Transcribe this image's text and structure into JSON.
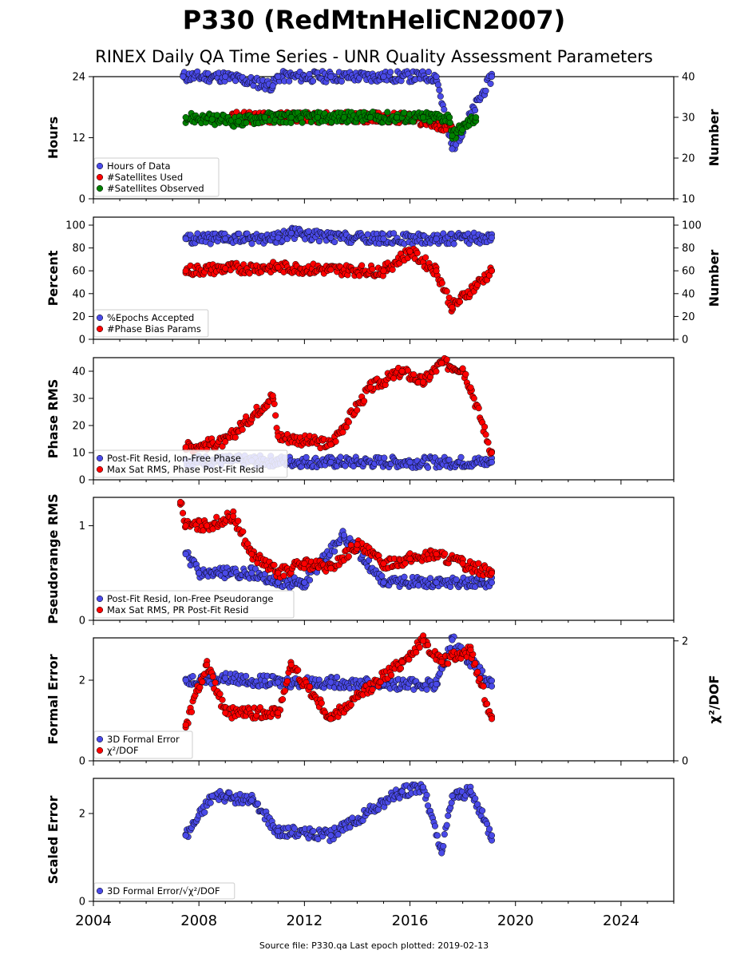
{
  "figure": {
    "title": "P330 (RedMtnHeliCN2007)",
    "subtitle": "RINEX Daily QA Time Series - UNR Quality Assessment Parameters",
    "footer": "Source file: P330.qa Last epoch plotted: 2019-02-13"
  },
  "colors": {
    "blue": "#4a4ae8",
    "red": "#ff0000",
    "green": "#008000",
    "outline": "#000000"
  },
  "chart_data": [
    {
      "type": "scatter",
      "ylabel": "Hours",
      "ylabel2": "Number",
      "xlim": [
        2004,
        2026
      ],
      "ylim": [
        0,
        24
      ],
      "yticks": [
        "0",
        "12",
        "24"
      ],
      "ylim2": [
        10,
        40
      ],
      "yticks2": [
        "10",
        "20",
        "30",
        "40"
      ],
      "legend_position": "lower-left",
      "series": [
        {
          "name": "Hours of Data",
          "color": "blue",
          "axis": "left",
          "values": [
            [
              2007.4,
              24
            ],
            [
              2009,
              24
            ],
            [
              2011,
              24
            ],
            [
              2013,
              24
            ],
            [
              2015,
              24
            ],
            [
              2017,
              24
            ],
            [
              2019.1,
              24
            ],
            [
              2010.8,
              22.2
            ],
            [
              2017.6,
              9.8
            ]
          ]
        },
        {
          "name": "#Satellites Used",
          "color": "red",
          "axis": "right",
          "values": [
            [
              2009.2,
              30
            ],
            [
              2017.6,
              27.5
            ],
            [
              2016,
              30
            ]
          ]
        },
        {
          "name": "#Satellites Observed",
          "color": "green",
          "axis": "right",
          "values": [
            [
              2007.5,
              30
            ],
            [
              2008.5,
              29.5
            ],
            [
              2009.5,
              29
            ],
            [
              2010.5,
              30
            ],
            [
              2011.5,
              30
            ],
            [
              2012.5,
              30
            ],
            [
              2013.5,
              30
            ],
            [
              2014.5,
              30
            ],
            [
              2015.5,
              30
            ],
            [
              2016.5,
              30
            ],
            [
              2017.5,
              30
            ],
            [
              2018.5,
              30
            ],
            [
              2017.6,
              25.5
            ]
          ]
        }
      ]
    },
    {
      "type": "scatter",
      "ylabel": "Percent",
      "ylabel2": "Number",
      "xlim": [
        2004,
        2026
      ],
      "ylim": [
        0,
        107
      ],
      "yticks": [
        "0",
        "20",
        "40",
        "60",
        "80",
        "100"
      ],
      "ylim2": [
        0,
        107
      ],
      "yticks2": [
        "0",
        "20",
        "40",
        "60",
        "80",
        "100"
      ],
      "legend_position": "lower-left",
      "series": [
        {
          "name": "%Epochs Accepted",
          "color": "blue",
          "axis": "left",
          "values": [
            [
              2007.5,
              88
            ],
            [
              2009,
              88
            ],
            [
              2011,
              89
            ],
            [
              2013,
              89
            ],
            [
              2015,
              88
            ],
            [
              2017,
              88
            ],
            [
              2019.1,
              89
            ],
            [
              2011.5,
              93
            ]
          ]
        },
        {
          "name": "#Phase Bias Params",
          "color": "red",
          "axis": "right",
          "values": [
            [
              2007.5,
              60
            ],
            [
              2009,
              62
            ],
            [
              2011,
              63
            ],
            [
              2013,
              61
            ],
            [
              2015,
              60
            ],
            [
              2017,
              60
            ],
            [
              2019.1,
              60
            ],
            [
              2017.6,
              28
            ],
            [
              2016,
              77
            ]
          ]
        }
      ]
    },
    {
      "type": "scatter",
      "ylabel": "Phase RMS",
      "xlim": [
        2004,
        2026
      ],
      "ylim": [
        0,
        45
      ],
      "yticks": [
        "0",
        "10",
        "20",
        "30",
        "40"
      ],
      "legend_position": "lower-left",
      "series": [
        {
          "name": "Post-Fit Resid, Ion-Free Phase",
          "color": "blue",
          "values": [
            [
              2007.5,
              7
            ],
            [
              2010,
              7
            ],
            [
              2013,
              6.5
            ],
            [
              2016,
              6.5
            ],
            [
              2019.1,
              6.5
            ]
          ]
        },
        {
          "name": "Max Sat RMS, Phase Post-Fit Resid",
          "color": "red",
          "values": [
            [
              2007.5,
              12
            ],
            [
              2009,
              14
            ],
            [
              2010.8,
              31
            ],
            [
              2011,
              16
            ],
            [
              2013,
              13
            ],
            [
              2014.5,
              34
            ],
            [
              2015.7,
              40
            ],
            [
              2016.5,
              36
            ],
            [
              2017.2,
              43
            ],
            [
              2018,
              41
            ],
            [
              2018.3,
              34
            ],
            [
              2019.1,
              10
            ]
          ]
        }
      ]
    },
    {
      "type": "scatter",
      "ylabel": "Pseudorange RMS",
      "xlim": [
        2004,
        2026
      ],
      "ylim": [
        0,
        1.3
      ],
      "yticks": [
        "0",
        "1"
      ],
      "legend_position": "lower-left",
      "series": [
        {
          "name": "Post-Fit Resid, Ion-Free Pseudorange",
          "color": "blue",
          "values": [
            [
              2007.5,
              0.7
            ],
            [
              2008,
              0.5
            ],
            [
              2009,
              0.5
            ],
            [
              2010,
              0.5
            ],
            [
              2011,
              0.4
            ],
            [
              2012,
              0.4
            ],
            [
              2013.5,
              0.9
            ],
            [
              2015,
              0.4
            ],
            [
              2017,
              0.4
            ],
            [
              2019.1,
              0.4
            ]
          ]
        },
        {
          "name": "Max Sat RMS, PR Post-Fit Resid",
          "color": "red",
          "values": [
            [
              2007.3,
              1.25
            ],
            [
              2007.5,
              1.0
            ],
            [
              2008.3,
              1.0
            ],
            [
              2009.3,
              1.1
            ],
            [
              2010,
              0.7
            ],
            [
              2011,
              0.5
            ],
            [
              2012,
              0.6
            ],
            [
              2013,
              0.55
            ],
            [
              2014,
              0.8
            ],
            [
              2015,
              0.6
            ],
            [
              2016,
              0.65
            ],
            [
              2017,
              0.7
            ],
            [
              2018,
              0.6
            ],
            [
              2019.1,
              0.5
            ]
          ]
        }
      ]
    },
    {
      "type": "scatter",
      "ylabel": "Formal Error",
      "ylabel2": "χ²/DOF",
      "xlim": [
        2004,
        2026
      ],
      "ylim": [
        0,
        3.05
      ],
      "yticks": [
        "0",
        "2"
      ],
      "ylim2": [
        0,
        2.05
      ],
      "yticks2": [
        "0",
        "2"
      ],
      "legend_position": "lower-left",
      "series": [
        {
          "name": "3D Formal Error",
          "color": "blue",
          "axis": "left",
          "values": [
            [
              2007.5,
              2.0
            ],
            [
              2009,
              2.05
            ],
            [
              2011,
              1.95
            ],
            [
              2013,
              1.95
            ],
            [
              2015,
              1.9
            ],
            [
              2017,
              1.9
            ],
            [
              2019.1,
              1.85
            ],
            [
              2017.6,
              3.0
            ]
          ]
        },
        {
          "name": "χ²/DOF",
          "color": "red",
          "axis": "right",
          "values": [
            [
              2007.5,
              0.6
            ],
            [
              2008.3,
              1.6
            ],
            [
              2009,
              0.8
            ],
            [
              2011,
              0.8
            ],
            [
              2011.5,
              1.6
            ],
            [
              2013,
              0.7
            ],
            [
              2015.7,
              1.65
            ],
            [
              2016.5,
              2.0
            ],
            [
              2017.2,
              1.65
            ],
            [
              2018.3,
              1.85
            ],
            [
              2019.1,
              0.7
            ]
          ]
        }
      ]
    },
    {
      "type": "scatter",
      "ylabel": "Scaled Error",
      "xlim": [
        2004,
        2026
      ],
      "ylim": [
        0,
        2.8
      ],
      "yticks": [
        "0",
        "2"
      ],
      "xticks": [
        "2004",
        "2008",
        "2012",
        "2016",
        "2020",
        "2024"
      ],
      "legend_position": "lower-left",
      "series": [
        {
          "name": "3D Formal Error/√χ²/DOF",
          "color": "blue",
          "values": [
            [
              2007.5,
              1.5
            ],
            [
              2008.5,
              2.4
            ],
            [
              2010,
              2.3
            ],
            [
              2011,
              1.6
            ],
            [
              2013,
              1.5
            ],
            [
              2015.7,
              2.5
            ],
            [
              2016.5,
              2.6
            ],
            [
              2017.2,
              1.1
            ],
            [
              2017.6,
              2.4
            ],
            [
              2018.3,
              2.5
            ],
            [
              2019.1,
              1.5
            ]
          ]
        }
      ]
    }
  ]
}
